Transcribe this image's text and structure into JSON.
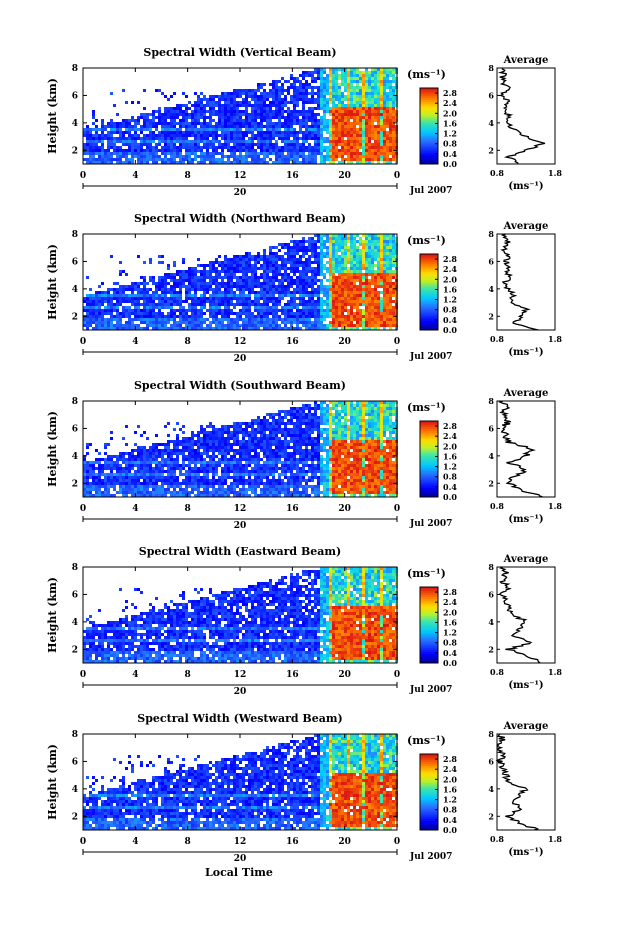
{
  "figure": {
    "xlabel": "Local Time",
    "date_label": "Jul 2007",
    "day_label": "20",
    "colorbar_unit": "(ms⁻¹)",
    "average_title": "Average",
    "average_xlabel": "(ms⁻¹)"
  },
  "chart_data": [
    {
      "type": "heatmap",
      "title": "Spectral Width (Vertical Beam)",
      "ylabel": "Height (km)",
      "xlabel": "",
      "x_ticks": [
        "0",
        "4",
        "8",
        "12",
        "16",
        "20",
        "0"
      ],
      "y_ticks": [
        "2",
        "4",
        "6",
        "8"
      ],
      "xlim": [
        0,
        24
      ],
      "ylim": [
        1,
        8
      ],
      "colorbar": {
        "ticks": [
          "0.0",
          "0.4",
          "0.8",
          "1.2",
          "1.6",
          "2.0",
          "2.4",
          "2.8"
        ],
        "range": [
          0,
          3.0
        ]
      },
      "regimes": [
        {
          "time_range": [
            0,
            18
          ],
          "height_range": [
            1,
            8
          ],
          "typical_value": 0.5
        },
        {
          "time_range": [
            18.5,
            24
          ],
          "height_range": [
            1.2,
            5.2
          ],
          "typical_value": 2.7
        },
        {
          "time_range": [
            18.5,
            24
          ],
          "height_range": [
            5.2,
            8
          ],
          "typical_value": 1.4
        }
      ],
      "average_profile": {
        "xlim": [
          0.8,
          1.8
        ],
        "x_ticks": [
          "0.8",
          "1.8"
        ],
        "y_ticks": [
          "2",
          "4",
          "6",
          "8"
        ],
        "height": [
          1.0,
          1.5,
          2.0,
          2.5,
          3.0,
          3.5,
          4.0,
          4.5,
          5.0,
          5.5,
          6.0,
          6.5,
          7.0,
          7.5,
          8.0
        ],
        "value": [
          1.2,
          1.0,
          1.3,
          1.6,
          1.3,
          1.1,
          1.0,
          1.0,
          0.95,
          1.0,
          0.85,
          1.0,
          0.9,
          0.9,
          0.9
        ]
      }
    },
    {
      "type": "heatmap",
      "title": "Spectral Width (Northward Beam)",
      "ylabel": "Height (km)",
      "xlabel": "",
      "x_ticks": [
        "0",
        "4",
        "8",
        "12",
        "16",
        "20",
        "0"
      ],
      "y_ticks": [
        "2",
        "4",
        "6",
        "8"
      ],
      "xlim": [
        0,
        24
      ],
      "ylim": [
        1,
        8
      ],
      "colorbar": {
        "ticks": [
          "0.0",
          "0.4",
          "0.8",
          "1.2",
          "1.6",
          "2.0",
          "2.4",
          "2.8"
        ],
        "range": [
          0,
          3.0
        ]
      },
      "regimes": [
        {
          "time_range": [
            0,
            18
          ],
          "height_range": [
            1,
            8
          ],
          "typical_value": 0.5
        },
        {
          "time_range": [
            18.5,
            24
          ],
          "height_range": [
            1.2,
            5.2
          ],
          "typical_value": 2.7
        },
        {
          "time_range": [
            18.5,
            24
          ],
          "height_range": [
            5.2,
            8
          ],
          "typical_value": 1.4
        }
      ],
      "average_profile": {
        "xlim": [
          0.8,
          1.8
        ],
        "x_ticks": [
          "0.8",
          "1.8"
        ],
        "y_ticks": [
          "2",
          "4",
          "6",
          "8"
        ],
        "height": [
          1.0,
          1.5,
          2.0,
          2.5,
          3.0,
          3.5,
          4.0,
          4.5,
          5.0,
          5.5,
          6.0,
          6.5,
          7.0,
          7.5,
          8.0
        ],
        "value": [
          1.5,
          1.1,
          1.2,
          1.3,
          1.0,
          1.1,
          1.0,
          0.95,
          1.0,
          1.0,
          0.95,
          1.0,
          0.9,
          1.0,
          0.95
        ]
      }
    },
    {
      "type": "heatmap",
      "title": "Spectral Width (Southward Beam)",
      "ylabel": "Height (km)",
      "xlabel": "",
      "x_ticks": [
        "0",
        "4",
        "8",
        "12",
        "16",
        "20",
        "0"
      ],
      "y_ticks": [
        "2",
        "4",
        "6",
        "8"
      ],
      "xlim": [
        0,
        24
      ],
      "ylim": [
        1,
        8
      ],
      "colorbar": {
        "ticks": [
          "0.0",
          "0.4",
          "0.8",
          "1.2",
          "1.6",
          "2.0",
          "2.4",
          "2.8"
        ],
        "range": [
          0,
          3.0
        ]
      },
      "regimes": [
        {
          "time_range": [
            0,
            18
          ],
          "height_range": [
            1,
            8
          ],
          "typical_value": 0.5
        },
        {
          "time_range": [
            18.5,
            24
          ],
          "height_range": [
            1.2,
            5.2
          ],
          "typical_value": 2.7
        },
        {
          "time_range": [
            18.5,
            24
          ],
          "height_range": [
            5.2,
            8
          ],
          "typical_value": 1.4
        }
      ],
      "average_profile": {
        "xlim": [
          0.8,
          1.8
        ],
        "x_ticks": [
          "0.8",
          "1.8"
        ],
        "y_ticks": [
          "2",
          "4",
          "6",
          "8"
        ],
        "height": [
          1.0,
          1.5,
          2.0,
          2.5,
          3.0,
          3.5,
          4.0,
          4.5,
          5.0,
          5.5,
          6.0,
          6.5,
          7.0,
          7.5,
          8.0
        ],
        "value": [
          1.6,
          1.2,
          1.0,
          1.1,
          1.3,
          1.0,
          1.3,
          1.4,
          1.0,
          0.95,
          0.9,
          1.0,
          0.9,
          0.95,
          0.9
        ]
      }
    },
    {
      "type": "heatmap",
      "title": "Spectral Width (Eastward Beam)",
      "ylabel": "Height (km)",
      "xlabel": "",
      "x_ticks": [
        "0",
        "4",
        "8",
        "12",
        "16",
        "20",
        "0"
      ],
      "y_ticks": [
        "2",
        "4",
        "6",
        "8"
      ],
      "xlim": [
        0,
        24
      ],
      "ylim": [
        1,
        8
      ],
      "colorbar": {
        "ticks": [
          "0.0",
          "0.4",
          "0.8",
          "1.2",
          "1.6",
          "2.0",
          "2.4",
          "2.8"
        ],
        "range": [
          0,
          3.0
        ]
      },
      "regimes": [
        {
          "time_range": [
            0,
            18
          ],
          "height_range": [
            1,
            8
          ],
          "typical_value": 0.5
        },
        {
          "time_range": [
            18.5,
            24
          ],
          "height_range": [
            1.2,
            5.2
          ],
          "typical_value": 2.7
        },
        {
          "time_range": [
            18.5,
            24
          ],
          "height_range": [
            5.2,
            8
          ],
          "typical_value": 1.4
        }
      ],
      "average_profile": {
        "xlim": [
          0.8,
          1.8
        ],
        "x_ticks": [
          "0.8",
          "1.8"
        ],
        "y_ticks": [
          "2",
          "4",
          "6",
          "8"
        ],
        "height": [
          1.0,
          1.5,
          2.0,
          2.5,
          3.0,
          3.5,
          4.0,
          4.5,
          5.0,
          5.5,
          6.0,
          6.5,
          7.0,
          7.5,
          8.0
        ],
        "value": [
          1.6,
          1.3,
          1.0,
          1.4,
          1.1,
          1.2,
          1.3,
          1.1,
          1.0,
          0.95,
          0.9,
          1.0,
          0.9,
          0.95,
          0.9
        ]
      }
    },
    {
      "type": "heatmap",
      "title": "Spectral Width (Westward Beam)",
      "ylabel": "Height (km)",
      "xlabel": "Local Time",
      "x_ticks": [
        "0",
        "4",
        "8",
        "12",
        "16",
        "20",
        "0"
      ],
      "y_ticks": [
        "2",
        "4",
        "6",
        "8"
      ],
      "xlim": [
        0,
        24
      ],
      "ylim": [
        1,
        8
      ],
      "colorbar": {
        "ticks": [
          "0.0",
          "0.4",
          "0.8",
          "1.2",
          "1.6",
          "2.0",
          "2.4",
          "2.8"
        ],
        "range": [
          0,
          3.0
        ]
      },
      "regimes": [
        {
          "time_range": [
            0,
            18
          ],
          "height_range": [
            1,
            8
          ],
          "typical_value": 0.5
        },
        {
          "time_range": [
            18.5,
            24
          ],
          "height_range": [
            1.2,
            5.2
          ],
          "typical_value": 2.7
        },
        {
          "time_range": [
            18.5,
            24
          ],
          "height_range": [
            5.2,
            8
          ],
          "typical_value": 1.4
        }
      ],
      "average_profile": {
        "xlim": [
          0.8,
          1.8
        ],
        "x_ticks": [
          "0.8",
          "1.8"
        ],
        "y_ticks": [
          "2",
          "4",
          "6",
          "8"
        ],
        "height": [
          1.0,
          1.5,
          2.0,
          2.5,
          3.0,
          3.5,
          4.0,
          4.5,
          5.0,
          5.5,
          6.0,
          6.5,
          7.0,
          7.5,
          8.0
        ],
        "value": [
          1.5,
          1.2,
          1.0,
          1.2,
          1.1,
          1.2,
          1.3,
          1.0,
          0.95,
          0.9,
          0.85,
          0.9,
          0.85,
          0.9,
          0.85
        ]
      }
    }
  ]
}
